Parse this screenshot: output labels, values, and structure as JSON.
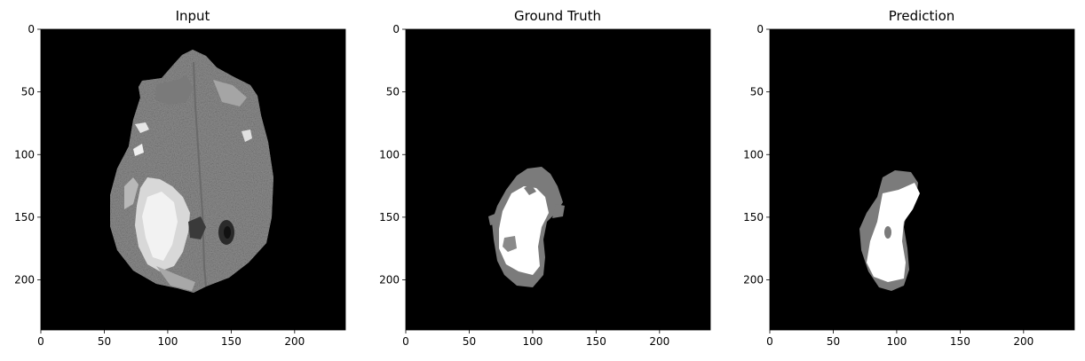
{
  "panels": [
    {
      "title": "Input",
      "xticks": [
        0,
        50,
        100,
        150,
        200
      ],
      "yticks": [
        0,
        50,
        100,
        150,
        200
      ],
      "content": "mri-slice"
    },
    {
      "title": "Ground Truth",
      "xticks": [
        0,
        50,
        100,
        150,
        200
      ],
      "yticks": [
        0,
        50,
        100,
        150,
        200
      ],
      "content": "segmentation-mask"
    },
    {
      "title": "Prediction",
      "xticks": [
        0,
        50,
        100,
        150,
        200
      ],
      "yticks": [
        0,
        50,
        100,
        150,
        200
      ],
      "content": "segmentation-mask"
    }
  ],
  "image_extent": [
    0,
    240
  ],
  "colors": {
    "background": "#000000",
    "tissue": "#8f8f8f",
    "edema": "#7b7b7b",
    "tumor": "#ffffff"
  }
}
